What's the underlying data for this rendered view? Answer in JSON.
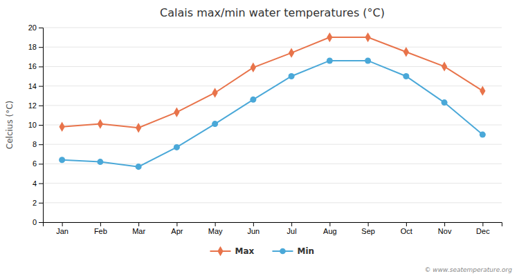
{
  "chart_data": {
    "type": "line",
    "title": "Calais max/min water temperatures (°C)",
    "y_label": "Celcius (°C)",
    "categories": [
      "Jan",
      "Feb",
      "Mar",
      "Apr",
      "May",
      "Jun",
      "Jul",
      "Aug",
      "Sep",
      "Oct",
      "Nov",
      "Dec"
    ],
    "series": [
      {
        "name": "Max",
        "color": "#E8734A",
        "marker": "diamond",
        "values": [
          9.8,
          10.1,
          9.7,
          11.3,
          13.3,
          15.9,
          17.4,
          19.0,
          19.0,
          17.5,
          16.0,
          13.5
        ]
      },
      {
        "name": "Min",
        "color": "#4AA8D8",
        "marker": "circle",
        "values": [
          6.4,
          6.2,
          5.7,
          7.7,
          10.1,
          12.6,
          15.0,
          16.6,
          16.6,
          15.0,
          12.3,
          9.0
        ]
      }
    ],
    "ylim": [
      0,
      20
    ],
    "yticks": [
      0,
      2,
      4,
      6,
      8,
      10,
      12,
      14,
      16,
      18,
      20
    ],
    "grid": true,
    "legend": "bottom",
    "annotations": [
      "© www.seatemperature.org"
    ]
  }
}
